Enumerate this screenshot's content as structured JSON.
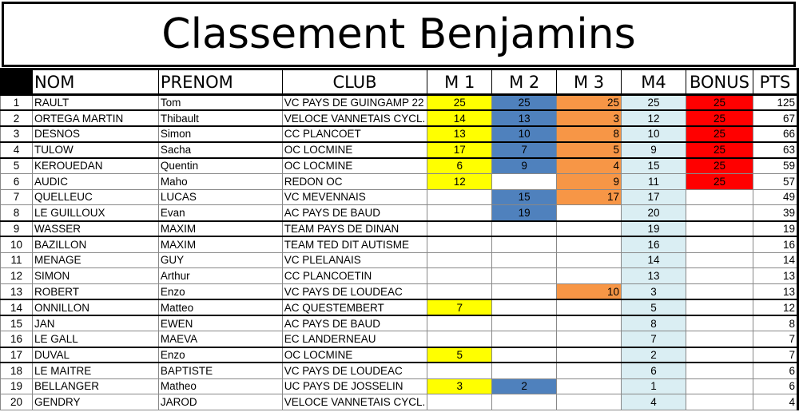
{
  "title": "Classement Benjamins",
  "colors": {
    "m1": "#ffff00",
    "m2": "#4f81bd",
    "m3": "#f79646",
    "m4": "#daeef3",
    "bonus": "#ff0000"
  },
  "headers": [
    "",
    "NOM",
    "PRENOM",
    "CLUB",
    "M 1",
    "M 2",
    "M 3",
    "M4",
    "BONUS",
    "PTS"
  ],
  "rows": [
    [
      "1",
      "RAULT",
      "Tom",
      "VC PAYS DE GUINGAMP 22",
      "25",
      "25",
      "25",
      "25",
      "25",
      "125"
    ],
    [
      "2",
      "ORTEGA MARTIN",
      "Thibault",
      "VELOCE VANNETAIS CYCL.",
      "14",
      "13",
      "3",
      "12",
      "25",
      "67"
    ],
    [
      "3",
      "DESNOS",
      "Simon",
      "CC PLANCOET",
      "13",
      "10",
      "8",
      "10",
      "25",
      "66"
    ],
    [
      "4",
      "TULOW",
      "Sacha",
      "OC LOCMINE",
      "17",
      "7",
      "5",
      "9",
      "25",
      "63"
    ],
    [
      "5",
      "KEROUEDAN",
      "Quentin",
      "OC LOCMINE",
      "6",
      "9",
      "4",
      "15",
      "25",
      "59"
    ],
    [
      "6",
      "AUDIC",
      "Maho",
      "REDON OC",
      "12",
      "",
      "9",
      "11",
      "25",
      "57"
    ],
    [
      "7",
      "QUELLEUC",
      "LUCAS",
      "VC MEVENNAIS",
      "",
      "15",
      "17",
      "17",
      "",
      "49"
    ],
    [
      "8",
      "LE GUILLOUX",
      "Evan",
      "AC PAYS DE BAUD",
      "",
      "19",
      "",
      "20",
      "",
      "39"
    ],
    [
      "9",
      "WASSER",
      "MAXIM",
      "TEAM PAYS DE DINAN",
      "",
      "",
      "",
      "19",
      "",
      "19"
    ],
    [
      "10",
      "BAZILLON",
      "MAXIM",
      "TEAM TED DIT AUTISME",
      "",
      "",
      "",
      "16",
      "",
      "16"
    ],
    [
      "11",
      "MENAGE",
      "GUY",
      "VC PLELANAIS",
      "",
      "",
      "",
      "14",
      "",
      "14"
    ],
    [
      "12",
      "SIMON",
      "Arthur",
      "CC PLANCOETIN",
      "",
      "",
      "",
      "13",
      "",
      "13"
    ],
    [
      "13",
      "ROBERT",
      "Enzo",
      "VC PAYS DE LOUDEAC",
      "",
      "",
      "10",
      "3",
      "",
      "13"
    ],
    [
      "14",
      "ONNILLON",
      "Matteo",
      "AC QUESTEMBERT",
      "7",
      "",
      "",
      "5",
      "",
      "12"
    ],
    [
      "15",
      "JAN",
      "EWEN",
      "AC PAYS DE BAUD",
      "",
      "",
      "",
      "8",
      "",
      "8"
    ],
    [
      "16",
      "LE GALL",
      "MAEVA",
      "EC LANDERNEAU",
      "",
      "",
      "",
      "7",
      "",
      "7"
    ],
    [
      "17",
      "DUVAL",
      "Enzo",
      "OC LOCMINE",
      "5",
      "",
      "",
      "2",
      "",
      "7"
    ],
    [
      "18",
      "LE MAITRE",
      "BAPTISTE",
      "VC PAYS DE LOUDEAC",
      "",
      "",
      "",
      "6",
      "",
      "6"
    ],
    [
      "19",
      "BELLANGER",
      "Matheo",
      "UC PAYS DE JOSSELIN",
      "3",
      "2",
      "",
      "1",
      "",
      "6"
    ],
    [
      "20",
      "GENDRY",
      "JAROD",
      "VELOCE VANNETAIS CYCL.",
      "",
      "",
      "",
      "4",
      "",
      "4"
    ]
  ]
}
